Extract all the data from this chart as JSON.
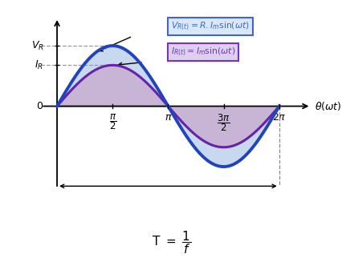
{
  "V_amplitude": 1.4,
  "I_amplitude": 0.95,
  "blue_color": "#2244BB",
  "purple_color": "#6622AA",
  "fill_blue_color": "#C8D8EE",
  "fill_purple_color": "#C8B4D4",
  "bg_color": "#FFFFFF",
  "vr_box_face": "#D8E8F8",
  "vr_box_edge": "#4466CC",
  "ir_box_face": "#DDD0EE",
  "ir_box_edge": "#7733BB",
  "xlim_left": -0.45,
  "xlim_right": 7.5,
  "ylim_bottom": -2.2,
  "ylim_top": 2.1
}
